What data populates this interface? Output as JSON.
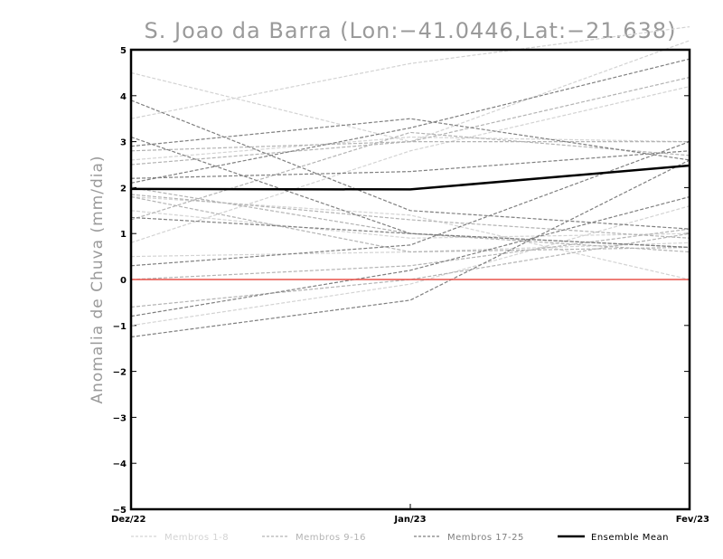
{
  "chart_data": {
    "type": "line",
    "title": "S. Joao da Barra (Lon:−41.0446,Lat:−21.638)",
    "xlabel": "",
    "ylabel": "Anomalia de Chuva (mm/dia)",
    "categories": [
      "Dez/22",
      "Jan/23",
      "Fev/23"
    ],
    "ylim": [
      -5,
      5
    ],
    "yticks": [
      "5",
      "4",
      "3",
      "2",
      "1",
      "0",
      "−1",
      "−2",
      "−3",
      "−4",
      "−5"
    ],
    "ytick_values": [
      5,
      4,
      3,
      2,
      1,
      0,
      -1,
      -2,
      -3,
      -4,
      -5
    ],
    "reference_line": {
      "value": 0,
      "color": "#e8524a"
    },
    "groups": [
      {
        "name": "Membros 1-8",
        "color": "#d3d3d3",
        "series": [
          {
            "values": [
              4.5,
              3.0,
              5.2
            ]
          },
          {
            "values": [
              3.5,
              4.7,
              5.5
            ]
          },
          {
            "values": [
              2.6,
              3.1,
              3.0
            ]
          },
          {
            "values": [
              1.5,
              0.9,
              1.0
            ]
          },
          {
            "values": [
              0.8,
              2.8,
              4.2
            ]
          },
          {
            "values": [
              -1.0,
              -0.1,
              1.6
            ]
          },
          {
            "values": [
              1.8,
              1.4,
              0.0
            ]
          },
          {
            "values": [
              0.5,
              0.6,
              0.8
            ]
          }
        ]
      },
      {
        "name": "Membros 9-16",
        "color": "#b3b3b3",
        "series": [
          {
            "values": [
              2.5,
              3.0,
              4.4
            ]
          },
          {
            "values": [
              1.3,
              3.2,
              2.7
            ]
          },
          {
            "values": [
              2.0,
              1.0,
              0.6
            ]
          },
          {
            "values": [
              0.0,
              0.3,
              1.1
            ]
          },
          {
            "values": [
              1.85,
              1.3,
              0.9
            ]
          },
          {
            "values": [
              -0.6,
              0.0,
              1.0
            ]
          },
          {
            "values": [
              1.8,
              0.6,
              0.7
            ]
          },
          {
            "values": [
              2.8,
              3.0,
              3.0
            ]
          }
        ]
      },
      {
        "name": "Membros 17-25",
        "color": "#7f7f7f",
        "series": [
          {
            "values": [
              3.9,
              1.5,
              1.1
            ]
          },
          {
            "values": [
              2.1,
              3.3,
              4.8
            ]
          },
          {
            "values": [
              3.1,
              1.0,
              0.7
            ]
          },
          {
            "values": [
              2.2,
              2.35,
              2.8
            ]
          },
          {
            "values": [
              -0.8,
              0.2,
              1.8
            ]
          },
          {
            "values": [
              1.35,
              1.0,
              0.7
            ]
          },
          {
            "values": [
              0.3,
              0.75,
              3.0
            ]
          },
          {
            "values": [
              -1.25,
              -0.45,
              2.6
            ]
          },
          {
            "values": [
              2.9,
              3.5,
              2.6
            ]
          }
        ]
      },
      {
        "name": "Ensemble Mean",
        "color": "#000000",
        "series": [
          {
            "values": [
              1.97,
              1.96,
              2.48
            ]
          }
        ]
      }
    ]
  },
  "legend": [
    {
      "label": "Membros 1-8",
      "color": "#d3d3d3",
      "style": "dashed"
    },
    {
      "label": "Membros 9-16",
      "color": "#b3b3b3",
      "style": "dashed"
    },
    {
      "label": "Membros 17-25",
      "color": "#7f7f7f",
      "style": "dashed"
    },
    {
      "label": "Ensemble Mean",
      "color": "#000000",
      "style": "solid"
    }
  ]
}
